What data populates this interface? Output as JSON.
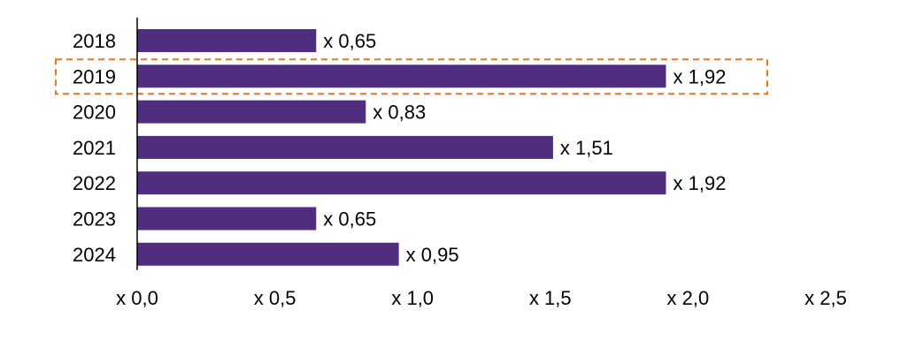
{
  "chart_data": {
    "type": "bar",
    "orientation": "horizontal",
    "categories": [
      "2018",
      "2019",
      "2020",
      "2021",
      "2022",
      "2023",
      "2024"
    ],
    "values": [
      0.65,
      1.92,
      0.83,
      1.51,
      1.92,
      0.65,
      0.95
    ],
    "data_labels": [
      "x 0,65",
      "x 1,92",
      "x 0,83",
      "x 1,51",
      "x 1,92",
      "x 0,65",
      "x 0,95"
    ],
    "x_ticks": [
      0,
      0.5,
      1.0,
      1.5,
      2.0,
      2.5
    ],
    "x_tick_labels": [
      "x 0,0",
      "x 0,5",
      "x 1,0",
      "x 1,5",
      "x 2,0",
      "x 2,5"
    ],
    "xlim": [
      0,
      2.5
    ],
    "grid": false,
    "legend": "none",
    "bar_color": "#4f2d7f",
    "highlight_category": "2019",
    "highlight_color": "#e87722"
  }
}
